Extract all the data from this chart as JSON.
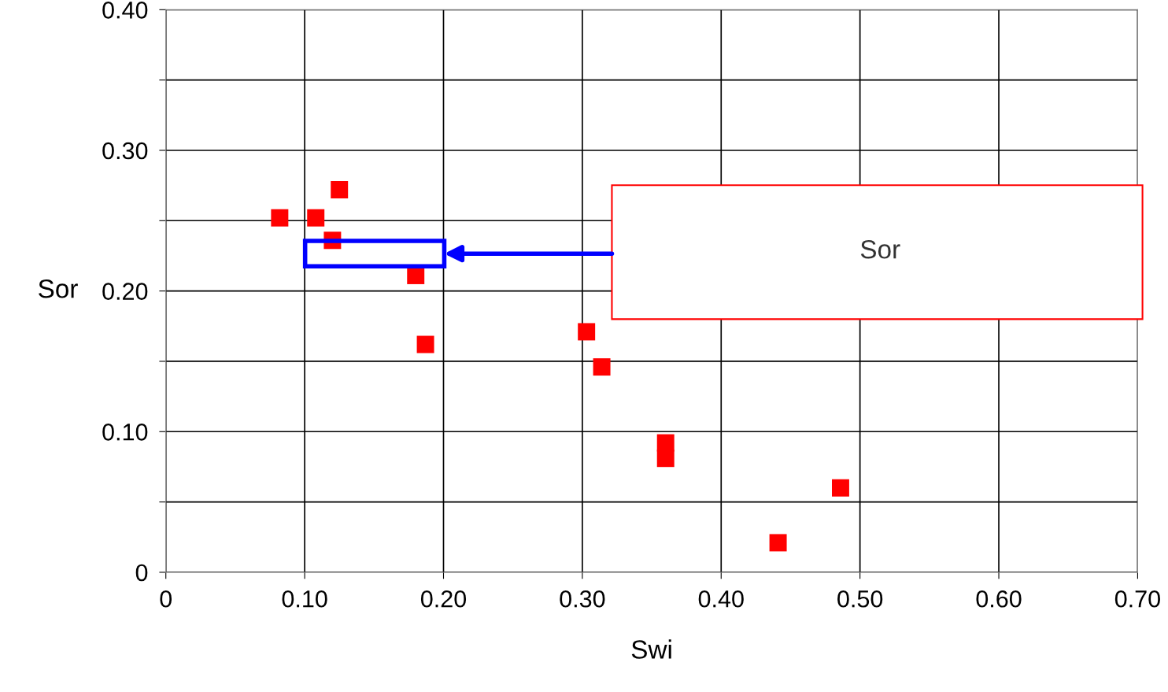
{
  "chart_data": {
    "type": "scatter",
    "xlabel": "Swi",
    "ylabel": "Sor",
    "x": [
      0.082,
      0.108,
      0.125,
      0.12,
      0.18,
      0.187,
      0.303,
      0.314,
      0.36,
      0.36,
      0.441,
      0.486
    ],
    "values": [
      0.252,
      0.252,
      0.272,
      0.236,
      0.211,
      0.162,
      0.171,
      0.146,
      0.092,
      0.081,
      0.021,
      0.06
    ],
    "color": "#ff0000",
    "marker": "square",
    "xlim": [
      0,
      0.7
    ],
    "ylim": [
      0,
      0.4
    ],
    "xticks": [
      {
        "value": 0,
        "label": "0"
      },
      {
        "value": 0.1,
        "label": "0.10"
      },
      {
        "value": 0.2,
        "label": "0.20"
      },
      {
        "value": 0.3,
        "label": "0.30"
      },
      {
        "value": 0.4,
        "label": "0.40"
      },
      {
        "value": 0.5,
        "label": "0.50"
      },
      {
        "value": 0.6,
        "label": "0.60"
      },
      {
        "value": 0.7,
        "label": "0.70"
      }
    ],
    "yticks": [
      {
        "value": 0,
        "label": "0"
      },
      {
        "value": 0.05,
        "label": null
      },
      {
        "value": 0.1,
        "label": "0.10"
      },
      {
        "value": 0.15,
        "label": null
      },
      {
        "value": 0.2,
        "label": "0.20"
      },
      {
        "value": 0.25,
        "label": null
      },
      {
        "value": 0.3,
        "label": "0.30"
      },
      {
        "value": 0.35,
        "label": null
      },
      {
        "value": 0.4,
        "label": "0.40"
      }
    ],
    "grid": true,
    "annotations": [
      "Sor"
    ]
  }
}
